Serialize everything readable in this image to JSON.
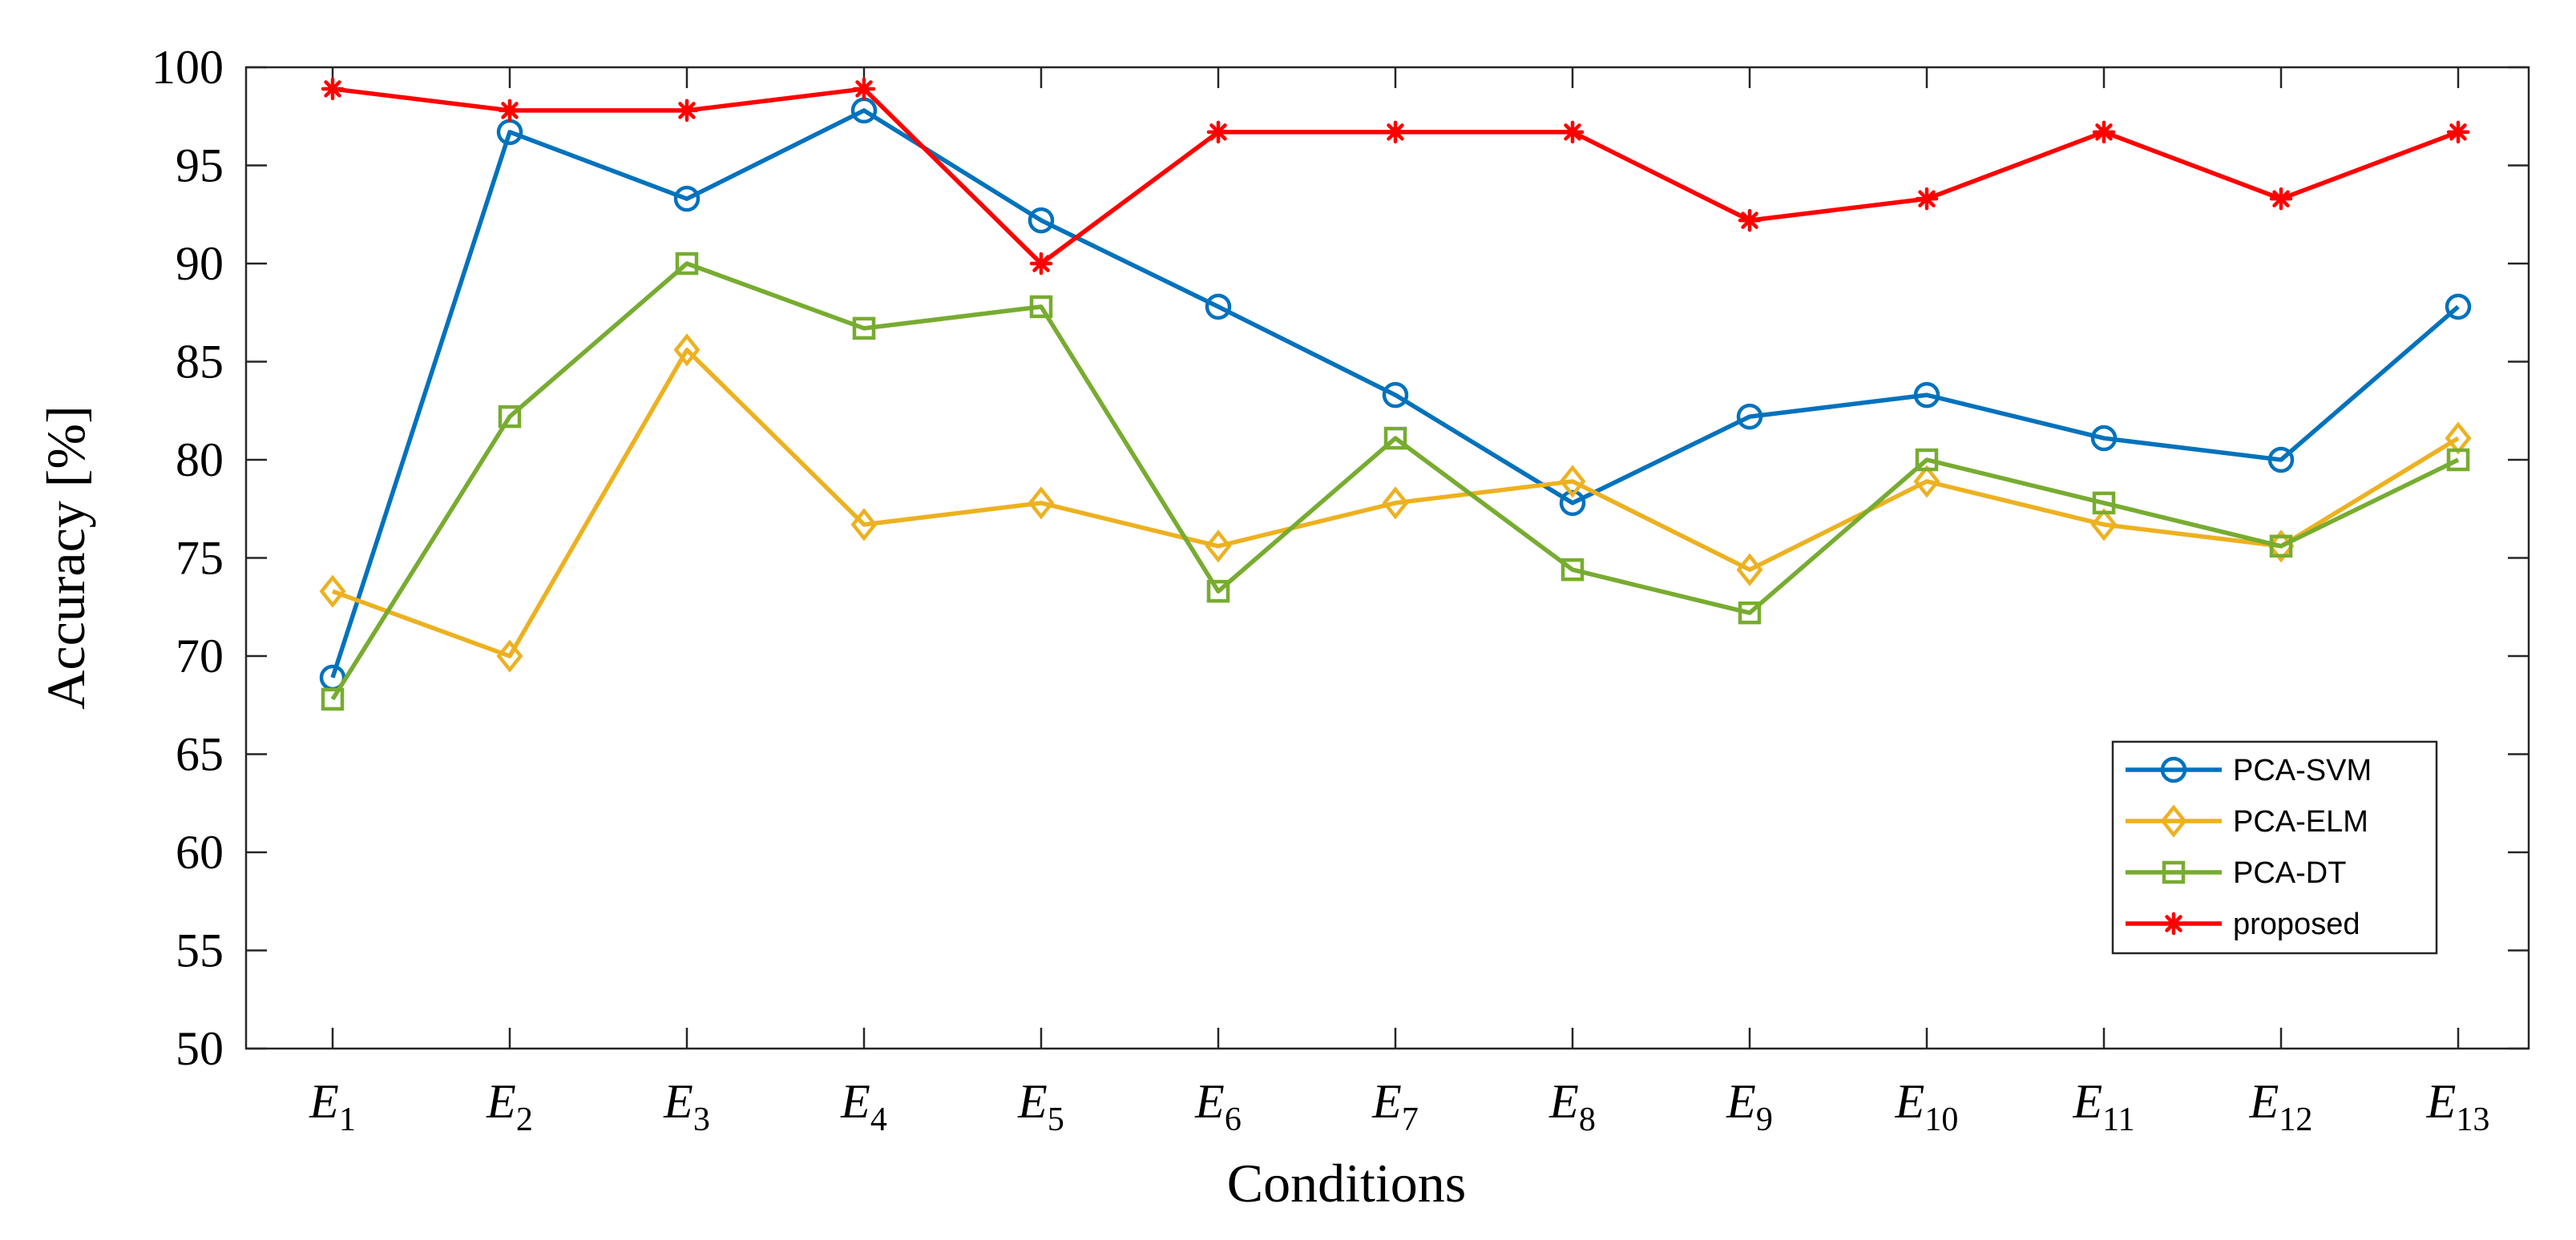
{
  "chart_data": {
    "type": "line",
    "title": "",
    "xlabel": "Conditions",
    "ylabel": "Accuracy [%]",
    "ylim": [
      50,
      100
    ],
    "yticks": [
      "50",
      "55",
      "60",
      "65",
      "70",
      "75",
      "80",
      "85",
      "90",
      "95",
      "100"
    ],
    "categories": [
      {
        "base": "E",
        "sub": "1"
      },
      {
        "base": "E",
        "sub": "2"
      },
      {
        "base": "E",
        "sub": "3"
      },
      {
        "base": "E",
        "sub": "4"
      },
      {
        "base": "E",
        "sub": "5"
      },
      {
        "base": "E",
        "sub": "6"
      },
      {
        "base": "E",
        "sub": "7"
      },
      {
        "base": "E",
        "sub": "8"
      },
      {
        "base": "E",
        "sub": "9"
      },
      {
        "base": "E",
        "sub": "10"
      },
      {
        "base": "E",
        "sub": "11"
      },
      {
        "base": "E",
        "sub": "12"
      },
      {
        "base": "E",
        "sub": "13"
      }
    ],
    "legend_position": "bottom-right",
    "grid": false,
    "series": [
      {
        "name": "PCA-SVM",
        "color": "#0072BD",
        "marker": "circle",
        "values": [
          68.9,
          96.7,
          93.3,
          97.8,
          92.2,
          87.8,
          83.3,
          77.8,
          82.2,
          83.3,
          81.1,
          80.0,
          87.8
        ]
      },
      {
        "name": "PCA-ELM",
        "color": "#EDB120",
        "marker": "diamond",
        "values": [
          73.3,
          70.0,
          85.6,
          76.7,
          77.8,
          75.6,
          77.8,
          78.9,
          74.4,
          78.9,
          76.7,
          75.6,
          81.1
        ]
      },
      {
        "name": "PCA-DT",
        "color": "#77AC30",
        "marker": "square",
        "values": [
          67.8,
          82.2,
          90.0,
          86.7,
          87.8,
          73.3,
          81.1,
          74.4,
          72.2,
          80.0,
          77.8,
          75.6,
          80.0
        ]
      },
      {
        "name": "proposed",
        "color": "#FF0000",
        "marker": "asterisk",
        "values": [
          98.9,
          97.8,
          97.8,
          98.9,
          90.0,
          96.7,
          96.7,
          96.7,
          92.2,
          93.3,
          96.7,
          93.3,
          96.7
        ]
      }
    ]
  }
}
